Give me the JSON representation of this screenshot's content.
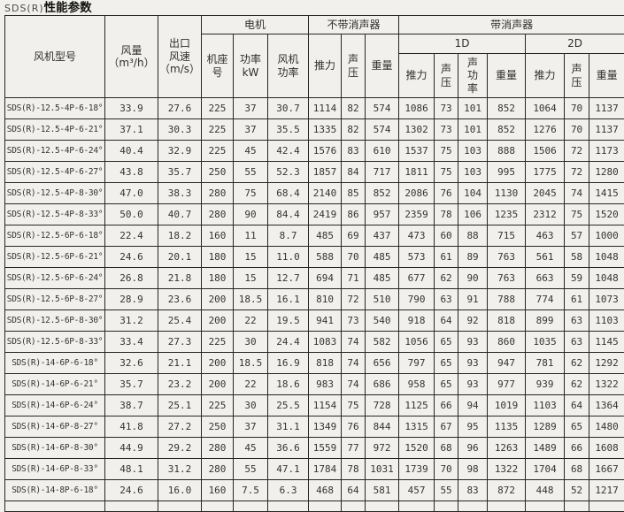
{
  "title": {
    "prefix": "SDS(R)",
    "main": "性能参数"
  },
  "colors": {
    "background": "#f1f0ec",
    "border": "#262626",
    "text": "#343434"
  },
  "table": {
    "headers": {
      "model": "风机型号",
      "airflow": "风量\n（m³/h）",
      "outlet_speed": "出口\n风速\n（m/s）",
      "motor_group": "电机",
      "no_silencer_group": "不带消声器",
      "with_silencer_group": "带消声器",
      "sub_1d": "1D",
      "sub_2d": "2D",
      "frame_no": "机座\n号",
      "motor_power": "功率\nkW",
      "fan_power": "风机\n功率",
      "thrust": "推力",
      "sound_pressure": "声\n压",
      "weight": "重量",
      "thrust_1d": "推力",
      "sound_pressure_1d": "声\n压",
      "sound_power_1d": "声\n功\n率",
      "weight_1d": "重量",
      "thrust_2d": "推力",
      "sound_pressure_2d": "声\n压",
      "weight_2d": "重量"
    },
    "rows": [
      [
        "SDS(R)-12.5-4P-6-18°",
        "33.9",
        "27.6",
        "225",
        "37",
        "30.7",
        "1114",
        "82",
        "574",
        "1086",
        "73",
        "101",
        "852",
        "1064",
        "70",
        "1137"
      ],
      [
        "SDS(R)-12.5-4P-6-21°",
        "37.1",
        "30.3",
        "225",
        "37",
        "35.5",
        "1335",
        "82",
        "574",
        "1302",
        "73",
        "101",
        "852",
        "1276",
        "70",
        "1137"
      ],
      [
        "SDS(R)-12.5-4P-6-24°",
        "40.4",
        "32.9",
        "225",
        "45",
        "42.4",
        "1576",
        "83",
        "610",
        "1537",
        "75",
        "103",
        "888",
        "1506",
        "72",
        "1173"
      ],
      [
        "SDS(R)-12.5-4P-6-27°",
        "43.8",
        "35.7",
        "250",
        "55",
        "52.3",
        "1857",
        "84",
        "717",
        "1811",
        "75",
        "103",
        "995",
        "1775",
        "72",
        "1280"
      ],
      [
        "SDS(R)-12.5-4P-8-30°",
        "47.0",
        "38.3",
        "280",
        "75",
        "68.4",
        "2140",
        "85",
        "852",
        "2086",
        "76",
        "104",
        "1130",
        "2045",
        "74",
        "1415"
      ],
      [
        "SDS(R)-12.5-4P-8-33°",
        "50.0",
        "40.7",
        "280",
        "90",
        "84.4",
        "2419",
        "86",
        "957",
        "2359",
        "78",
        "106",
        "1235",
        "2312",
        "75",
        "1520"
      ],
      [
        "SDS(R)-12.5-6P-6-18°",
        "22.4",
        "18.2",
        "160",
        "11",
        "8.7",
        "485",
        "69",
        "437",
        "473",
        "60",
        "88",
        "715",
        "463",
        "57",
        "1000"
      ],
      [
        "SDS(R)-12.5-6P-6-21°",
        "24.6",
        "20.1",
        "180",
        "15",
        "11.0",
        "588",
        "70",
        "485",
        "573",
        "61",
        "89",
        "763",
        "561",
        "58",
        "1048"
      ],
      [
        "SDS(R)-12.5-6P-6-24°",
        "26.8",
        "21.8",
        "180",
        "15",
        "12.7",
        "694",
        "71",
        "485",
        "677",
        "62",
        "90",
        "763",
        "663",
        "59",
        "1048"
      ],
      [
        "SDS(R)-12.5-6P-8-27°",
        "28.9",
        "23.6",
        "200",
        "18.5",
        "16.1",
        "810",
        "72",
        "510",
        "790",
        "63",
        "91",
        "788",
        "774",
        "61",
        "1073"
      ],
      [
        "SDS(R)-12.5-6P-8-30°",
        "31.2",
        "25.4",
        "200",
        "22",
        "19.5",
        "941",
        "73",
        "540",
        "918",
        "64",
        "92",
        "818",
        "899",
        "63",
        "1103"
      ],
      [
        "SDS(R)-12.5-6P-8-33°",
        "33.4",
        "27.3",
        "225",
        "30",
        "24.4",
        "1083",
        "74",
        "582",
        "1056",
        "65",
        "93",
        "860",
        "1035",
        "63",
        "1145"
      ],
      [
        "SDS(R)-14-6P-6-18°",
        "32.6",
        "21.1",
        "200",
        "18.5",
        "16.9",
        "818",
        "74",
        "656",
        "797",
        "65",
        "93",
        "947",
        "781",
        "62",
        "1292"
      ],
      [
        "SDS(R)-14-6P-6-21°",
        "35.7",
        "23.2",
        "200",
        "22",
        "18.6",
        "983",
        "74",
        "686",
        "958",
        "65",
        "93",
        "977",
        "939",
        "62",
        "1322"
      ],
      [
        "SDS(R)-14-6P-6-24°",
        "38.7",
        "25.1",
        "225",
        "30",
        "25.5",
        "1154",
        "75",
        "728",
        "1125",
        "66",
        "94",
        "1019",
        "1103",
        "64",
        "1364"
      ],
      [
        "SDS(R)-14-6P-8-27°",
        "41.8",
        "27.2",
        "250",
        "37",
        "31.1",
        "1349",
        "76",
        "844",
        "1315",
        "67",
        "95",
        "1135",
        "1289",
        "65",
        "1480"
      ],
      [
        "SDS(R)-14-6P-8-30°",
        "44.9",
        "29.2",
        "280",
        "45",
        "36.6",
        "1559",
        "77",
        "972",
        "1520",
        "68",
        "96",
        "1263",
        "1489",
        "66",
        "1608"
      ],
      [
        "SDS(R)-14-6P-8-33°",
        "48.1",
        "31.2",
        "280",
        "55",
        "47.1",
        "1784",
        "78",
        "1031",
        "1739",
        "70",
        "98",
        "1322",
        "1704",
        "68",
        "1667"
      ],
      [
        "SDS(R)-14-8P-6-18°",
        "24.6",
        "16.0",
        "160",
        "7.5",
        "6.3",
        "468",
        "64",
        "581",
        "457",
        "55",
        "83",
        "872",
        "448",
        "52",
        "1217"
      ]
    ]
  }
}
